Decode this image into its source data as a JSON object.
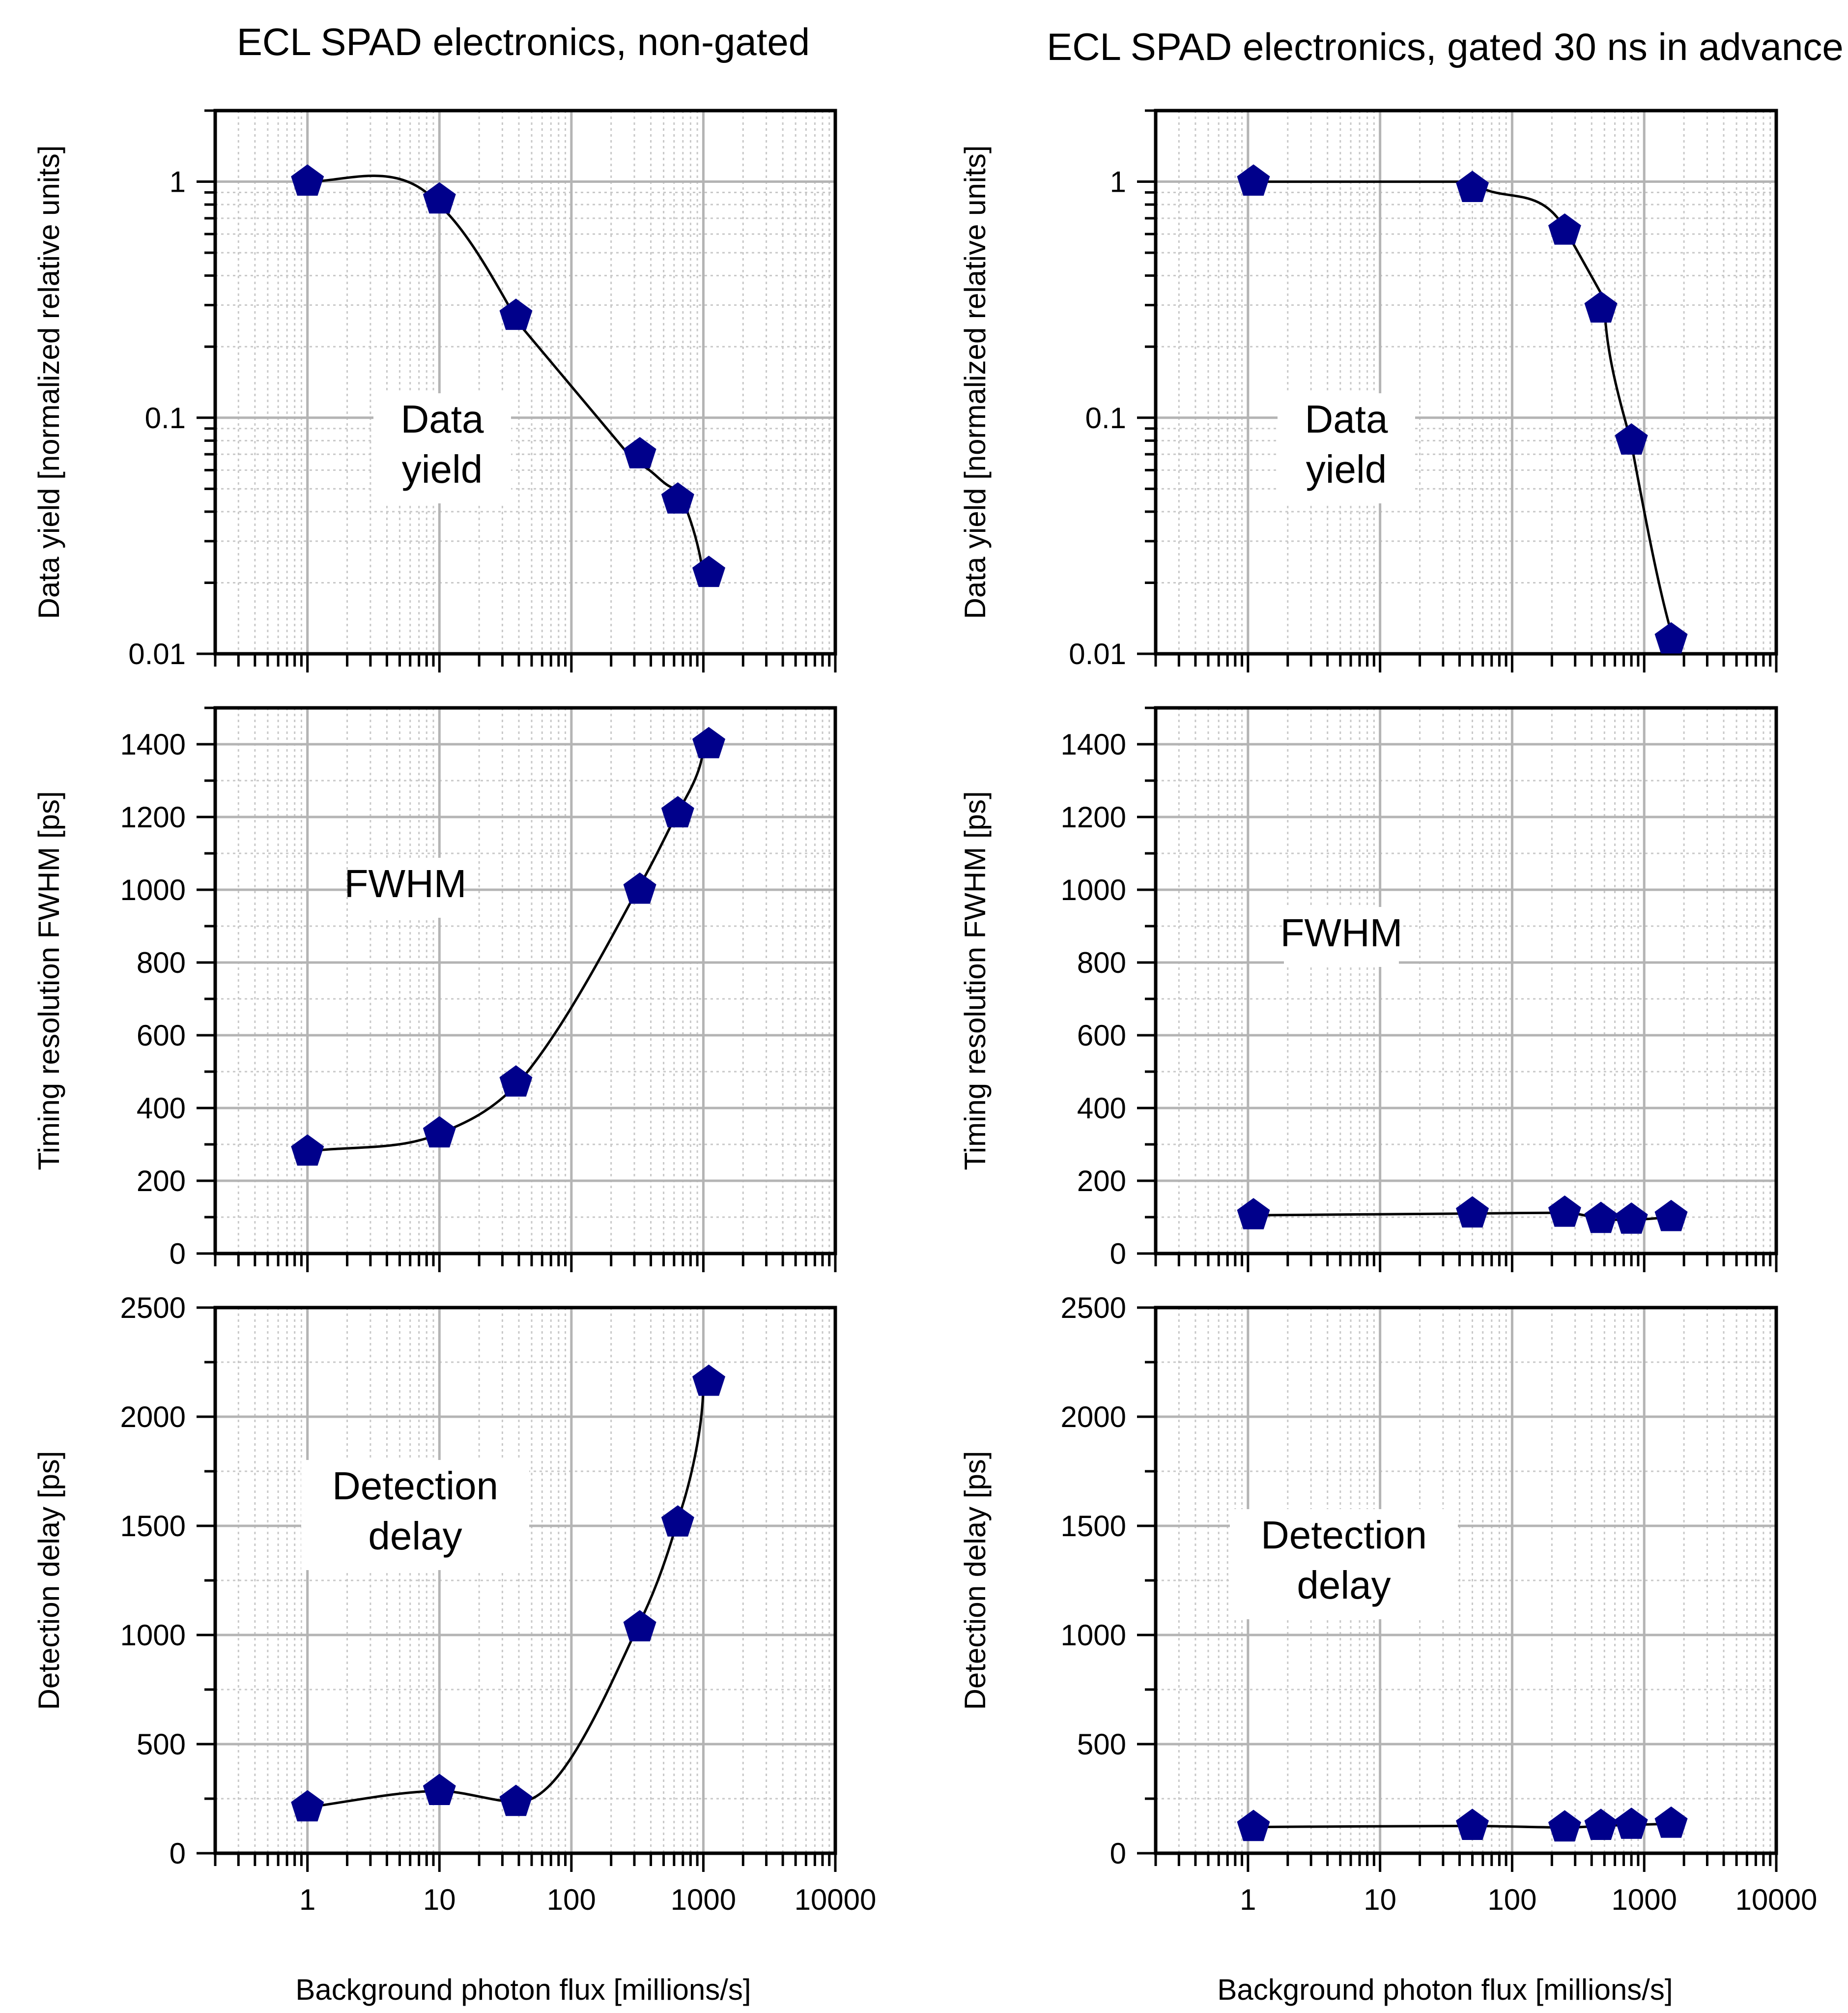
{
  "colors": {
    "marker": "#00008b",
    "curve": "#000000",
    "grid_major": "#b4b4b4",
    "grid_minor": "#c8c8c8",
    "frame": "#000000"
  },
  "columns": [
    {
      "title": "ECL SPAD electronics, non-gated",
      "xlabel": "Background photon flux [millions/s]"
    },
    {
      "title": "ECL SPAD electronics, gated 30 ns in advance",
      "xlabel": "Background photon flux [millions/s]"
    }
  ],
  "chart_data": [
    {
      "type": "scatter",
      "id": "yield-nongated",
      "title": "ECL SPAD electronics, non-gated",
      "ylabel": "Data yield [normalized relative units]",
      "xlabel": "",
      "xscale": "log",
      "yscale": "log",
      "xlim": [
        0.2,
        10000
      ],
      "ylim": [
        0.01,
        2
      ],
      "yticks": [
        0.01,
        0.1,
        1
      ],
      "ytick_labels": [
        "0.01",
        "0.1",
        "1"
      ],
      "xticks": [
        1,
        10,
        100,
        1000,
        10000
      ],
      "xtick_labels": [],
      "annotation": [
        "Data",
        "yield"
      ],
      "grid": true,
      "marker": "pentagon",
      "x": [
        1,
        10,
        38,
        330,
        640,
        1100
      ],
      "y": [
        1.0,
        0.84,
        0.27,
        0.07,
        0.045,
        0.022
      ]
    },
    {
      "type": "scatter",
      "id": "yield-gated",
      "title": "ECL SPAD electronics, gated 30 ns in advance",
      "ylabel": "Data yield [normalized relative units]",
      "xlabel": "",
      "xscale": "log",
      "yscale": "log",
      "xlim": [
        0.2,
        10000
      ],
      "ylim": [
        0.01,
        2
      ],
      "yticks": [
        0.01,
        0.1,
        1
      ],
      "ytick_labels": [
        "0.01",
        "0.1",
        "1"
      ],
      "xticks": [
        1,
        10,
        100,
        1000,
        10000
      ],
      "xtick_labels": [],
      "annotation": [
        "Data",
        "yield"
      ],
      "grid": true,
      "marker": "pentagon",
      "x": [
        1.1,
        50,
        250,
        470,
        800,
        1600
      ],
      "y": [
        1.0,
        0.94,
        0.62,
        0.29,
        0.08,
        0.0115
      ]
    },
    {
      "type": "scatter",
      "id": "fwhm-nongated",
      "ylabel": "Timing resolution FWHM [ps]",
      "xlabel": "",
      "xscale": "log",
      "yscale": "linear",
      "xlim": [
        0.2,
        10000
      ],
      "ylim": [
        0,
        1500
      ],
      "yticks": [
        0,
        200,
        400,
        600,
        800,
        1000,
        1200,
        1400
      ],
      "ytick_labels": [
        "0",
        "200",
        "400",
        "600",
        "800",
        "1000",
        "1200",
        "1400"
      ],
      "xticks": [
        1,
        10,
        100,
        1000,
        10000
      ],
      "xtick_labels": [],
      "annotation": [
        "FWHM"
      ],
      "grid": true,
      "marker": "pentagon",
      "x": [
        1,
        10,
        38,
        330,
        640,
        1100
      ],
      "y": [
        280,
        330,
        470,
        1000,
        1210,
        1400
      ]
    },
    {
      "type": "scatter",
      "id": "fwhm-gated",
      "ylabel": "Timing resolution FWHM [ps]",
      "xlabel": "",
      "xscale": "log",
      "yscale": "linear",
      "xlim": [
        0.2,
        10000
      ],
      "ylim": [
        0,
        1500
      ],
      "yticks": [
        0,
        200,
        400,
        600,
        800,
        1000,
        1200,
        1400
      ],
      "ytick_labels": [
        "0",
        "200",
        "400",
        "600",
        "800",
        "1000",
        "1200",
        "1400"
      ],
      "xticks": [
        1,
        10,
        100,
        1000,
        10000
      ],
      "xtick_labels": [],
      "annotation": [
        "FWHM"
      ],
      "grid": true,
      "marker": "pentagon",
      "x": [
        1.1,
        50,
        250,
        470,
        800,
        1600
      ],
      "y": [
        105,
        110,
        112,
        95,
        93,
        100
      ]
    },
    {
      "type": "scatter",
      "id": "delay-nongated",
      "ylabel": "Detection delay [ps]",
      "xlabel": "Background photon flux [millions/s]",
      "xscale": "log",
      "yscale": "linear",
      "xlim": [
        0.2,
        10000
      ],
      "ylim": [
        0,
        2500
      ],
      "yticks": [
        0,
        500,
        1000,
        1500,
        2000,
        2500
      ],
      "ytick_labels": [
        "0",
        "500",
        "1000",
        "1500",
        "2000",
        "2500"
      ],
      "xticks": [
        1,
        10,
        100,
        1000,
        10000
      ],
      "xtick_labels": [
        "1",
        "10",
        "100",
        "1000",
        "10000"
      ],
      "annotation": [
        "Detection",
        "delay"
      ],
      "grid": true,
      "marker": "pentagon",
      "x": [
        1,
        10,
        38,
        330,
        640,
        1100
      ],
      "y": [
        210,
        285,
        235,
        1035,
        1515,
        2160
      ]
    },
    {
      "type": "scatter",
      "id": "delay-gated",
      "ylabel": "Detection delay [ps]",
      "xlabel": "Background photon flux [millions/s]",
      "xscale": "log",
      "yscale": "linear",
      "xlim": [
        0.2,
        10000
      ],
      "ylim": [
        0,
        2500
      ],
      "yticks": [
        0,
        500,
        1000,
        1500,
        2000,
        2500
      ],
      "ytick_labels": [
        "0",
        "500",
        "1000",
        "1500",
        "2000",
        "2500"
      ],
      "xticks": [
        1,
        10,
        100,
        1000,
        10000
      ],
      "xtick_labels": [
        "1",
        "10",
        "100",
        "1000",
        "10000"
      ],
      "annotation": [
        "Detection",
        "delay"
      ],
      "grid": true,
      "marker": "pentagon",
      "x": [
        1.1,
        50,
        250,
        470,
        800,
        1600
      ],
      "y": [
        120,
        125,
        118,
        125,
        130,
        135
      ]
    }
  ]
}
